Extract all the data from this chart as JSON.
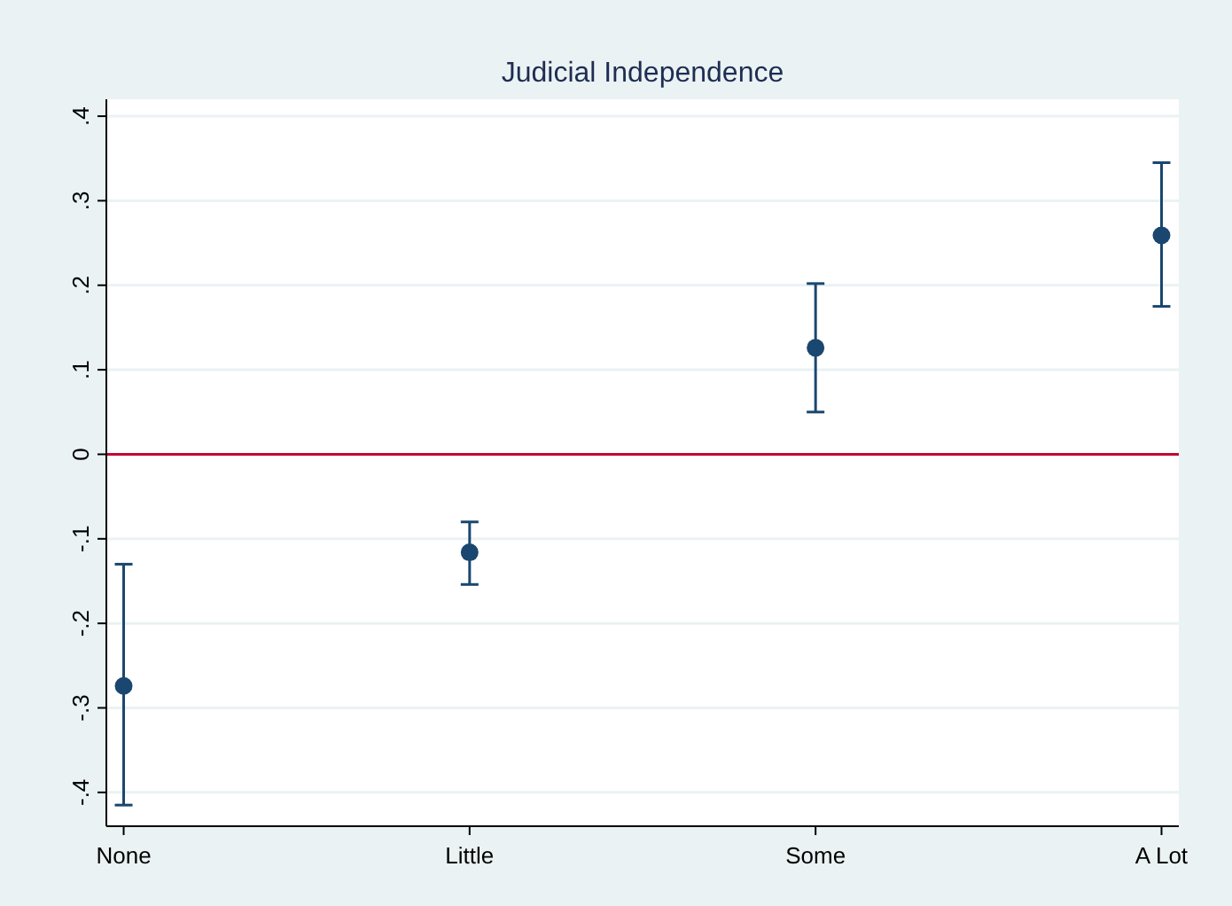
{
  "chart_data": {
    "type": "scatter",
    "title": "Judicial Independence",
    "categories": [
      "None",
      "Little",
      "Some",
      "A Lot"
    ],
    "series": [
      {
        "color": "#1a476f",
        "values": [
          -0.274,
          -0.116,
          0.126,
          0.259
        ],
        "errors": [
          [
            -0.415,
            -0.13
          ],
          [
            -0.154,
            -0.08
          ],
          [
            0.05,
            0.202
          ],
          [
            0.175,
            0.345
          ]
        ]
      }
    ],
    "ylim": [
      -0.44,
      0.42
    ],
    "yticks": [
      {
        "value": -0.4,
        "label": "-.4"
      },
      {
        "value": -0.3,
        "label": "-.3"
      },
      {
        "value": -0.2,
        "label": "-.2"
      },
      {
        "value": -0.1,
        "label": "-.1"
      },
      0,
      {
        "value": 0.1,
        "label": ".1"
      },
      {
        "value": 0.2,
        "label": ".2"
      },
      {
        "value": 0.3,
        "label": ".3"
      },
      {
        "value": 0.4,
        "label": ".4"
      }
    ],
    "grid": "y",
    "marker": "circle",
    "ref_lines": [
      {
        "axis": "y",
        "value": 0,
        "color": "#c10534"
      }
    ]
  }
}
